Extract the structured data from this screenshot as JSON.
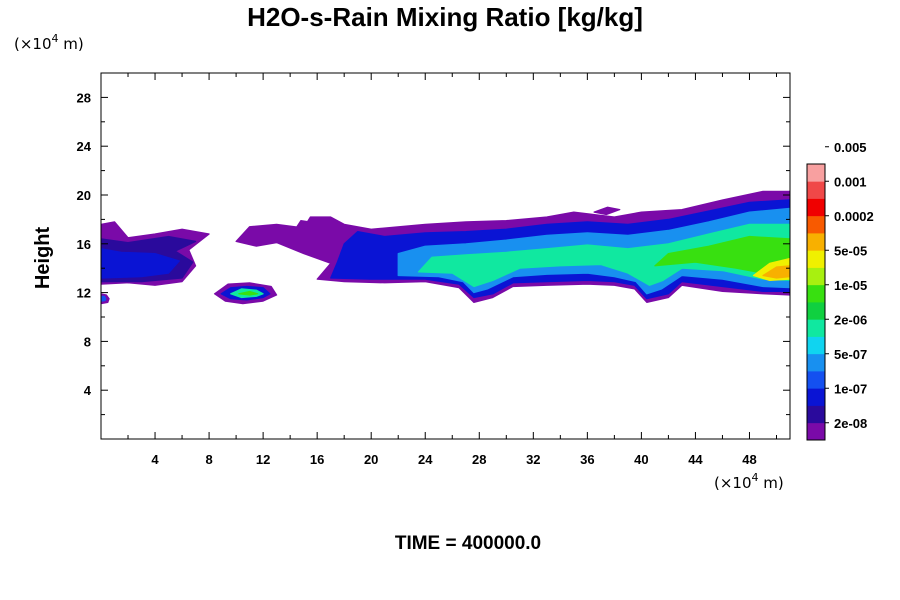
{
  "chart_data": {
    "type": "heatmap",
    "title": "H2O-s-Rain Mixing Ratio [kg/kg]",
    "ylabel": "Height",
    "x_unit": [
      "(×10",
      "4",
      " m)"
    ],
    "y_unit": [
      "(×10",
      "4",
      " m)"
    ],
    "footer": "TIME = 400000.0",
    "xlim": [
      0,
      51
    ],
    "ylim": [
      0,
      30
    ],
    "x_ticks": [
      4,
      8,
      12,
      16,
      20,
      24,
      28,
      32,
      36,
      40,
      44,
      48
    ],
    "y_ticks": [
      4,
      8,
      12,
      16,
      20,
      24,
      28
    ],
    "colorbar": {
      "colors": [
        "#7a0aa8",
        "#2a0a9c",
        "#0a14d4",
        "#1450f0",
        "#1890f0",
        "#10d4f0",
        "#10e8a0",
        "#10d040",
        "#38e010",
        "#a8f010",
        "#f0f000",
        "#f8b000",
        "#f85a00",
        "#f00000",
        "#f04848",
        "#f8a0a0"
      ],
      "labels": [
        "2e-08",
        "1e-07",
        "5e-07",
        "2e-06",
        "1e-05",
        "5e-05",
        "0.0002",
        "0.001",
        "0.005"
      ]
    },
    "regions": [
      {
        "level": 0,
        "pts": [
          [
            0,
            12.7
          ],
          [
            2,
            12.8
          ],
          [
            4,
            12.6
          ],
          [
            6,
            12.9
          ],
          [
            7,
            14.2
          ],
          [
            6.5,
            15.5
          ],
          [
            8,
            16.8
          ],
          [
            6,
            17.2
          ],
          [
            4,
            16.8
          ],
          [
            2,
            16.5
          ],
          [
            1,
            17.8
          ],
          [
            0,
            17.6
          ]
        ]
      },
      {
        "level": 0,
        "pts": [
          [
            10,
            16.2
          ],
          [
            11,
            17.4
          ],
          [
            13,
            17.6
          ],
          [
            15,
            17.3
          ],
          [
            15.5,
            18.2
          ],
          [
            17,
            18.2
          ],
          [
            18,
            17.6
          ],
          [
            20,
            17.2
          ],
          [
            24,
            17.6
          ],
          [
            27,
            17.8
          ],
          [
            30,
            17.9
          ],
          [
            33,
            18.2
          ],
          [
            35,
            18.6
          ],
          [
            38,
            18.2
          ],
          [
            40,
            18.6
          ],
          [
            43,
            18.8
          ],
          [
            46,
            19.6
          ],
          [
            49,
            20.3
          ],
          [
            51,
            20.3
          ],
          [
            51,
            11.8
          ],
          [
            49,
            11.9
          ],
          [
            46,
            12.1
          ],
          [
            43,
            12.6
          ],
          [
            42,
            11.6
          ],
          [
            40.4,
            11.2
          ],
          [
            39.5,
            12.3
          ],
          [
            38,
            12.6
          ],
          [
            36,
            12.7
          ],
          [
            33,
            12.6
          ],
          [
            30.5,
            12.5
          ],
          [
            29,
            11.6
          ],
          [
            27.6,
            11.2
          ],
          [
            26.5,
            12.4
          ],
          [
            24,
            12.9
          ],
          [
            21,
            12.8
          ],
          [
            18,
            12.9
          ],
          [
            16,
            13.1
          ],
          [
            17,
            14.4
          ],
          [
            15,
            15.2
          ],
          [
            13,
            16.1
          ],
          [
            11.5,
            15.8
          ]
        ]
      },
      {
        "level": 1,
        "pts": [
          [
            0,
            12.9
          ],
          [
            3,
            12.9
          ],
          [
            6,
            13.2
          ],
          [
            6.8,
            14.5
          ],
          [
            5.5,
            15.4
          ],
          [
            7,
            16.2
          ],
          [
            5,
            16.6
          ],
          [
            2,
            16.1
          ],
          [
            0,
            16.4
          ]
        ]
      },
      {
        "level": 2,
        "pts": [
          [
            0,
            13.2
          ],
          [
            3,
            13.3
          ],
          [
            5,
            13.6
          ],
          [
            5.8,
            14.6
          ],
          [
            4,
            15.2
          ],
          [
            1.5,
            15.3
          ],
          [
            0,
            15.6
          ]
        ]
      },
      {
        "level": 2,
        "pts": [
          [
            17,
            13.2
          ],
          [
            20,
            13.1
          ],
          [
            24,
            13.1
          ],
          [
            26.5,
            12.7
          ],
          [
            27.6,
            11.6
          ],
          [
            29,
            11.9
          ],
          [
            30.5,
            12.8
          ],
          [
            33,
            12.9
          ],
          [
            36,
            13.0
          ],
          [
            38,
            12.9
          ],
          [
            39.5,
            12.6
          ],
          [
            40.4,
            11.5
          ],
          [
            42,
            11.9
          ],
          [
            43,
            12.9
          ],
          [
            46,
            12.5
          ],
          [
            49,
            12.1
          ],
          [
            51,
            12.1
          ],
          [
            51,
            19.6
          ],
          [
            48,
            19.4
          ],
          [
            45,
            18.7
          ],
          [
            42,
            18.0
          ],
          [
            39,
            17.6
          ],
          [
            36,
            17.8
          ],
          [
            33,
            17.6
          ],
          [
            30,
            17.2
          ],
          [
            27,
            17.0
          ],
          [
            24,
            16.9
          ],
          [
            21,
            16.6
          ],
          [
            19,
            17.0
          ],
          [
            18,
            16.0
          ],
          [
            17.5,
            14.5
          ]
        ]
      },
      {
        "level": 4,
        "pts": [
          [
            22,
            13.4
          ],
          [
            25,
            13.3
          ],
          [
            26.8,
            12.9
          ],
          [
            27.6,
            12.0
          ],
          [
            28.6,
            12.3
          ],
          [
            30.5,
            13.3
          ],
          [
            33,
            13.5
          ],
          [
            36,
            13.6
          ],
          [
            38,
            13.3
          ],
          [
            39.6,
            12.9
          ],
          [
            40.4,
            11.9
          ],
          [
            41.5,
            12.3
          ],
          [
            43,
            13.4
          ],
          [
            46,
            13.1
          ],
          [
            49,
            12.5
          ],
          [
            51,
            12.4
          ],
          [
            51,
            18.9
          ],
          [
            48,
            18.6
          ],
          [
            45,
            17.8
          ],
          [
            42,
            17.1
          ],
          [
            39,
            16.7
          ],
          [
            36,
            16.9
          ],
          [
            33,
            16.7
          ],
          [
            30,
            16.3
          ],
          [
            27,
            16.0
          ],
          [
            24,
            15.8
          ],
          [
            22,
            15.2
          ]
        ]
      },
      {
        "level": 6,
        "pts": [
          [
            23.5,
            13.7
          ],
          [
            26,
            13.6
          ],
          [
            27.6,
            12.5
          ],
          [
            29,
            13.0
          ],
          [
            31,
            14.0
          ],
          [
            34,
            14.2
          ],
          [
            37,
            14.3
          ],
          [
            39,
            13.6
          ],
          [
            40.6,
            12.6
          ],
          [
            41.6,
            13.0
          ],
          [
            43,
            14.0
          ],
          [
            46,
            13.8
          ],
          [
            49,
            13.1
          ],
          [
            51,
            13.0
          ],
          [
            51,
            17.6
          ],
          [
            48,
            17.6
          ],
          [
            45,
            16.8
          ],
          [
            42,
            16.0
          ],
          [
            39,
            15.6
          ],
          [
            36,
            15.9
          ],
          [
            33,
            15.6
          ],
          [
            30,
            15.3
          ],
          [
            27,
            15.1
          ],
          [
            24.5,
            14.9
          ]
        ]
      },
      {
        "level": 8,
        "pts": [
          [
            41,
            14.2
          ],
          [
            44,
            14.5
          ],
          [
            47,
            14.0
          ],
          [
            49,
            13.6
          ],
          [
            51,
            13.5
          ],
          [
            51,
            16.4
          ],
          [
            48,
            16.6
          ],
          [
            45,
            15.8
          ],
          [
            42,
            15.2
          ]
        ]
      },
      {
        "level": 10,
        "pts": [
          [
            48.3,
            13.4
          ],
          [
            49.5,
            13.0
          ],
          [
            51,
            13.1
          ],
          [
            51,
            14.8
          ],
          [
            49.5,
            14.4
          ]
        ]
      },
      {
        "level": 11,
        "pts": [
          [
            49,
            13.4
          ],
          [
            50,
            13.2
          ],
          [
            51,
            13.3
          ],
          [
            51,
            14.2
          ],
          [
            50,
            14.1
          ]
        ]
      },
      {
        "level": 0,
        "pts": [
          [
            8.4,
            11.9
          ],
          [
            9.2,
            11.3
          ],
          [
            10.5,
            11.1
          ],
          [
            12,
            11.3
          ],
          [
            13,
            11.8
          ],
          [
            12.6,
            12.5
          ],
          [
            11,
            12.8
          ],
          [
            9.4,
            12.7
          ]
        ]
      },
      {
        "level": 2,
        "pts": [
          [
            8.9,
            11.9
          ],
          [
            9.6,
            11.5
          ],
          [
            10.8,
            11.4
          ],
          [
            12,
            11.6
          ],
          [
            12.5,
            11.9
          ],
          [
            12,
            12.4
          ],
          [
            10.8,
            12.5
          ],
          [
            9.6,
            12.4
          ]
        ]
      },
      {
        "level": 6,
        "pts": [
          [
            9.6,
            11.9
          ],
          [
            10.4,
            11.6
          ],
          [
            11.5,
            11.7
          ],
          [
            12,
            11.9
          ],
          [
            11.5,
            12.2
          ],
          [
            10.4,
            12.3
          ]
        ]
      },
      {
        "level": 8,
        "pts": [
          [
            10.2,
            11.9
          ],
          [
            11,
            11.8
          ],
          [
            11.6,
            11.9
          ],
          [
            11,
            12.1
          ]
        ]
      },
      {
        "level": 0,
        "pts": [
          [
            0,
            11.1
          ],
          [
            0.5,
            11.2
          ],
          [
            0.6,
            11.5
          ],
          [
            0.4,
            11.8
          ],
          [
            0,
            11.9
          ]
        ]
      },
      {
        "level": 3,
        "pts": [
          [
            0,
            11.3
          ],
          [
            0.3,
            11.35
          ],
          [
            0.35,
            11.5
          ],
          [
            0.25,
            11.7
          ],
          [
            0,
            11.7
          ]
        ]
      },
      {
        "level": 0,
        "pts": [
          [
            14.5,
            17.4
          ],
          [
            14.8,
            17.9
          ],
          [
            15.4,
            17.8
          ],
          [
            15.2,
            17.3
          ]
        ]
      },
      {
        "level": 0,
        "pts": [
          [
            36.5,
            18.6
          ],
          [
            37.5,
            19.0
          ],
          [
            38.4,
            18.8
          ],
          [
            37.4,
            18.4
          ]
        ]
      }
    ]
  }
}
